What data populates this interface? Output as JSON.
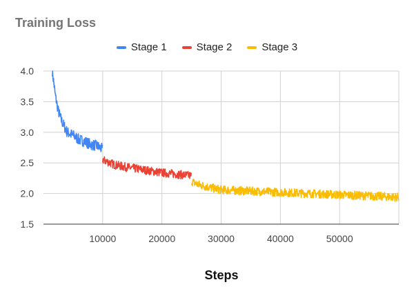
{
  "chart_data": {
    "type": "line",
    "title": "Training Loss",
    "xlabel": "Steps",
    "ylabel": "",
    "xlim": [
      0,
      60000
    ],
    "ylim": [
      1.5,
      4.0
    ],
    "x_ticks": [
      10000,
      20000,
      30000,
      40000,
      50000
    ],
    "x_tick_labels": [
      "10000",
      "20000",
      "30000",
      "40000",
      "50000"
    ],
    "y_ticks": [
      1.5,
      2.0,
      2.5,
      3.0,
      3.5,
      4.0
    ],
    "y_tick_labels": [
      "1.5",
      "2.0",
      "2.5",
      "3.0",
      "3.5",
      "4.0"
    ],
    "grid": true,
    "legend_position": "top-center",
    "series": [
      {
        "name": "Stage 1",
        "color": "#4285f4",
        "x": [
          1500,
          2000,
          2500,
          3000,
          3500,
          4000,
          5000,
          6000,
          7000,
          8000,
          9000,
          10000
        ],
        "y": [
          4.0,
          3.6,
          3.35,
          3.2,
          3.1,
          3.0,
          2.95,
          2.88,
          2.85,
          2.8,
          2.78,
          2.72
        ]
      },
      {
        "name": "Stage 2",
        "color": "#ea4335",
        "x": [
          10000,
          12000,
          14000,
          16000,
          18000,
          20000,
          22000,
          24000,
          25000
        ],
        "y": [
          2.55,
          2.47,
          2.43,
          2.4,
          2.37,
          2.34,
          2.32,
          2.3,
          2.29
        ]
      },
      {
        "name": "Stage 3",
        "color": "#fbbc04",
        "x": [
          25000,
          26000,
          28000,
          30000,
          35000,
          40000,
          45000,
          50000,
          55000,
          60000
        ],
        "y": [
          2.2,
          2.15,
          2.1,
          2.06,
          2.04,
          2.02,
          2.0,
          1.98,
          1.96,
          1.94
        ]
      }
    ]
  }
}
